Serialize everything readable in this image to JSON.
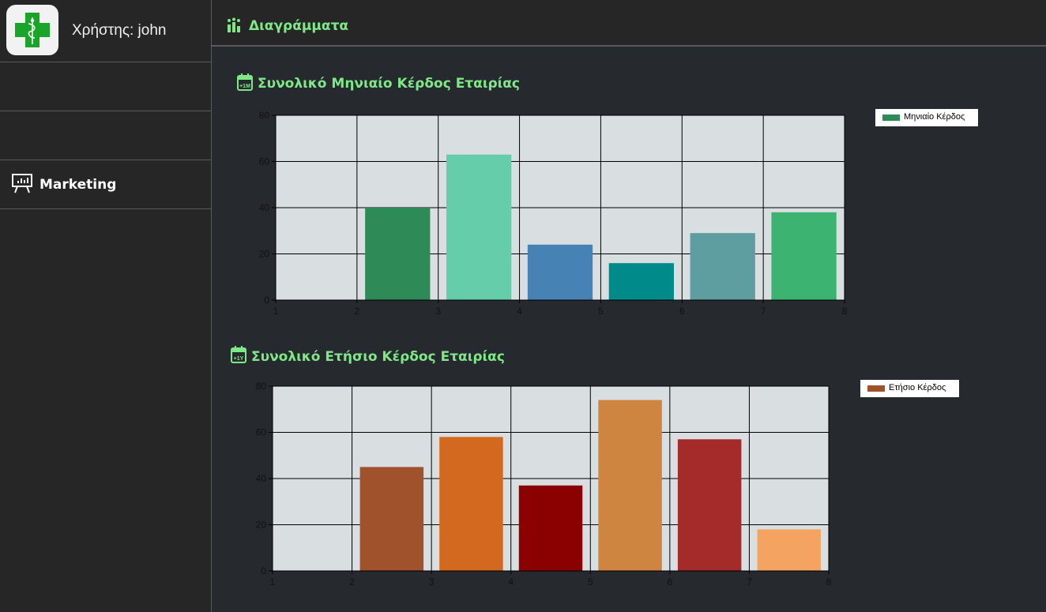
{
  "sidebar": {
    "user_label": "Χρήστης: john",
    "items": [
      {
        "label": "Marketing",
        "icon": "presentation-chart-icon"
      }
    ]
  },
  "header": {
    "title": "Διαγράμματα",
    "icon": "charts-icon"
  },
  "colors": {
    "accent": "#7ee887",
    "sidebar_bg": "#262626",
    "main_bg": "#26292e",
    "plot_bg": "#d9dee0"
  },
  "chart_data": [
    {
      "type": "bar",
      "title": "Συνολικό Μηνιαίο Κέρδος Εταιρίας",
      "icon": "calendar-month-icon",
      "x": [
        2,
        3,
        4,
        5,
        6,
        7
      ],
      "values": [
        40,
        63,
        24,
        16,
        29,
        38
      ],
      "colors": [
        "#2e8b57",
        "#66cdaa",
        "#4682b4",
        "#008b8b",
        "#5f9ea0",
        "#3cb371"
      ],
      "series": [
        {
          "name": "Μηνιαίο Κέρδος",
          "color": "#2e8b57"
        }
      ],
      "xlim": [
        1,
        8
      ],
      "ylim": [
        0,
        80
      ],
      "xticks": [
        1,
        2,
        3,
        4,
        5,
        6,
        7,
        8
      ],
      "yticks": [
        0,
        20,
        40,
        60,
        80
      ],
      "grid": true,
      "legend": "top-right"
    },
    {
      "type": "bar",
      "title": "Συνολικό Ετήσιο Κέρδος Εταιρίας",
      "icon": "calendar-year-icon",
      "x": [
        2,
        3,
        4,
        5,
        6,
        7
      ],
      "values": [
        45,
        58,
        37,
        74,
        57,
        18
      ],
      "colors": [
        "#a0522d",
        "#d2691e",
        "#8b0000",
        "#cd853f",
        "#a52a2a",
        "#f4a460"
      ],
      "series": [
        {
          "name": "Ετήσιο Κέρδος",
          "color": "#a0522d"
        }
      ],
      "xlim": [
        1,
        8
      ],
      "ylim": [
        0,
        80
      ],
      "xticks": [
        1,
        2,
        3,
        4,
        5,
        6,
        7,
        8
      ],
      "yticks": [
        0,
        20,
        40,
        60,
        80
      ],
      "grid": true,
      "legend": "top-right"
    }
  ]
}
